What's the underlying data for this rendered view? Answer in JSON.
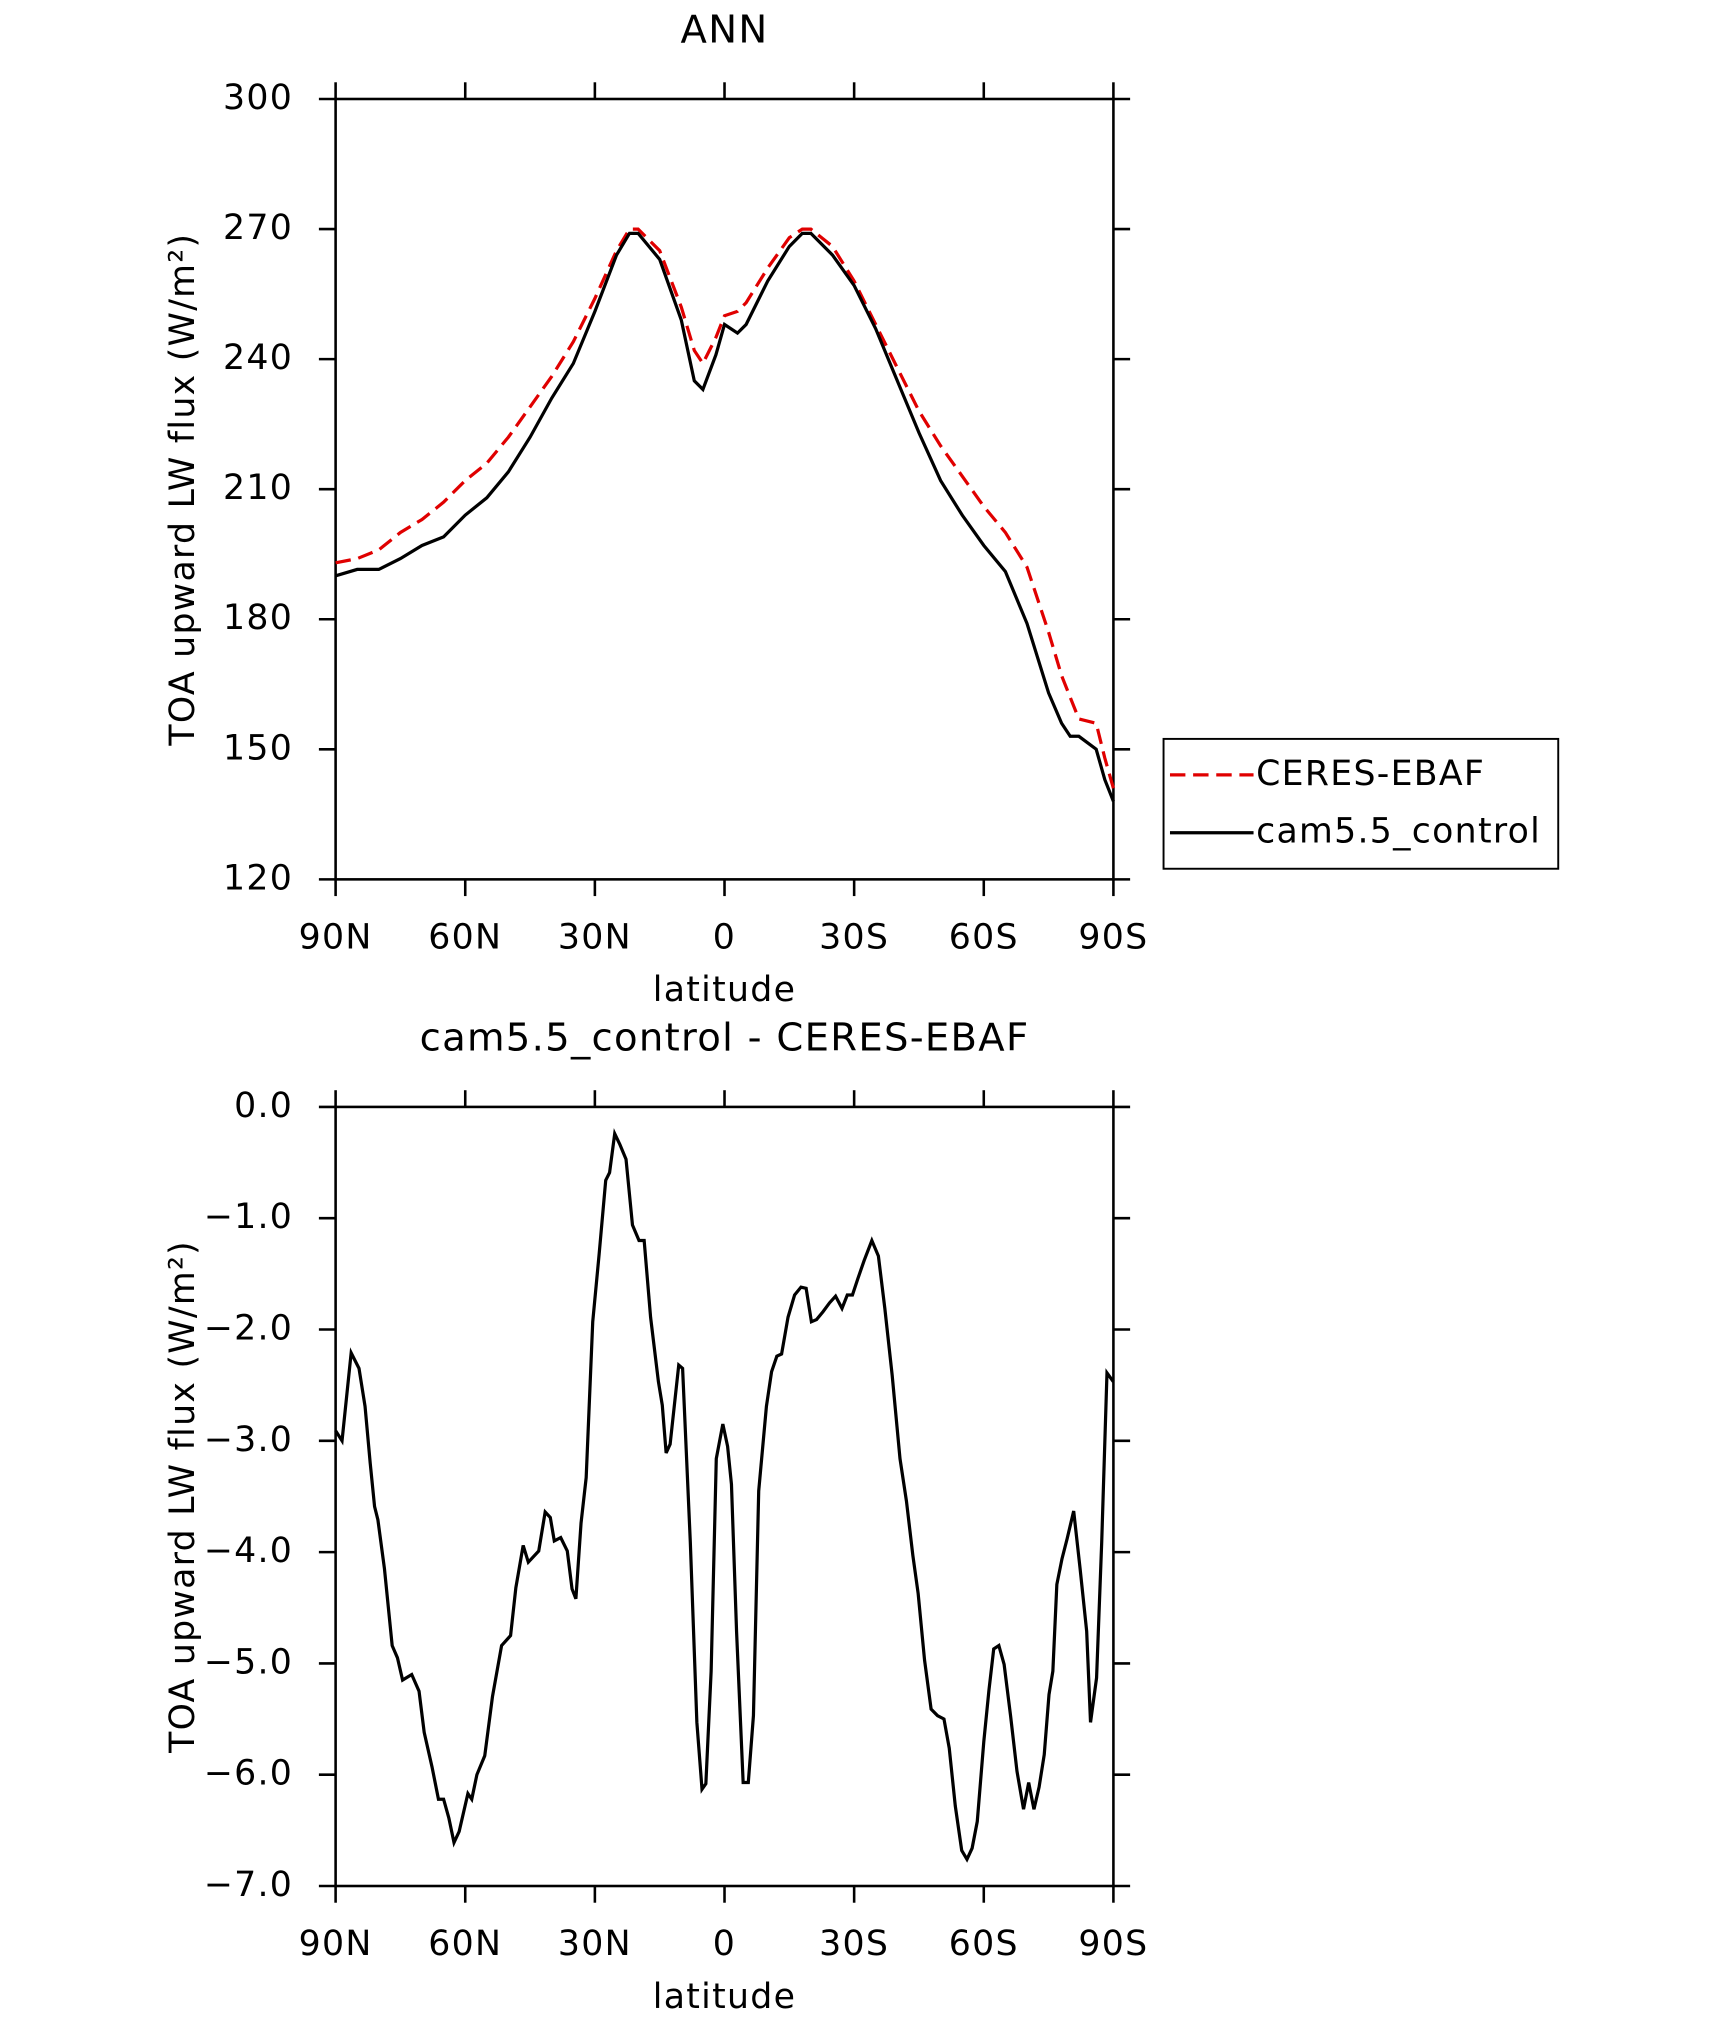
{
  "chart_data": [
    {
      "type": "line",
      "title": "ANN",
      "xlabel": "latitude",
      "ylabel": "TOA upward LW flux (W/m²)",
      "x": [
        90,
        85,
        80,
        75,
        70,
        65,
        60,
        55,
        50,
        45,
        40,
        35,
        30,
        25,
        22,
        20,
        15,
        10,
        7,
        5,
        2,
        0,
        -3,
        -5,
        -10,
        -15,
        -18,
        -20,
        -25,
        -30,
        -35,
        -40,
        -45,
        -50,
        -55,
        -60,
        -65,
        -70,
        -75,
        -78,
        -80,
        -82,
        -86,
        -88,
        -90
      ],
      "series": [
        {
          "name": "CERES-EBAF",
          "color": "#e00000",
          "dash": true,
          "values": [
            193,
            194,
            196,
            200,
            203,
            207,
            212,
            216,
            222,
            229,
            236,
            244,
            254,
            265,
            270,
            270,
            265,
            252,
            242,
            239,
            245,
            250,
            251,
            253,
            261,
            268,
            270,
            270,
            266,
            258,
            248,
            238,
            228,
            220,
            213,
            206,
            200,
            192,
            177,
            167,
            162,
            157,
            156,
            148,
            141
          ]
        },
        {
          "name": "cam5.5_control",
          "color": "#000000",
          "dash": false,
          "values": [
            190,
            191.5,
            191.5,
            194,
            197,
            199,
            204,
            208,
            214,
            222,
            231,
            239,
            251,
            264,
            269,
            269,
            263,
            249,
            235,
            233,
            241,
            248,
            246,
            248,
            258,
            266,
            269,
            269,
            264,
            257,
            247,
            235,
            223,
            212,
            204,
            197,
            191,
            179,
            163,
            156,
            153,
            153,
            150,
            143,
            138
          ]
        }
      ],
      "xlim": [
        90,
        -90
      ],
      "xticks": [
        {
          "value": 90,
          "label": "90N"
        },
        {
          "value": 60,
          "label": "60N"
        },
        {
          "value": 30,
          "label": "30N"
        },
        0,
        {
          "value": -30,
          "label": "30S"
        },
        {
          "value": -60,
          "label": "60S"
        },
        {
          "value": -90,
          "label": "90S"
        }
      ],
      "ylim": [
        120,
        300
      ],
      "yticks": [
        120,
        150,
        180,
        210,
        240,
        270,
        300
      ],
      "legend": "right"
    },
    {
      "type": "line",
      "title": "cam5.5_control - CERES-EBAF",
      "xlabel": "latitude",
      "ylabel": "TOA upward LW flux (W/m²)",
      "x": [
        90,
        88.5,
        86.4,
        84.6,
        83.2,
        82,
        81,
        80.2,
        78.7,
        76.9,
        75.7,
        74.5,
        72.4,
        70.7,
        69.5,
        67.7,
        66.2,
        65,
        63.8,
        62.6,
        61.4,
        59.4,
        58.5,
        57.3,
        55.5,
        53.7,
        51.6,
        49.5,
        48.3,
        46.6,
        45.4,
        43,
        41.5,
        40.3,
        39.4,
        37.9,
        36.4,
        35.3,
        34.4,
        33.2,
        32,
        30.5,
        29,
        27.5,
        26.6,
        25.4,
        24.2,
        22.8,
        21.3,
        19.8,
        18.6,
        17.1,
        15.3,
        14.4,
        13.5,
        12.6,
        10.6,
        9.7,
        7.9,
        6.4,
        5.2,
        4.3,
        3.1,
        1.9,
        0.4,
        -0.7,
        -1.6,
        -2.8,
        -4.3,
        -5.5,
        -6.7,
        -7.9,
        -9.7,
        -10.9,
        -12.1,
        -13.2,
        -14.7,
        -16.2,
        -17.7,
        -18.9,
        -20.1,
        -21.3,
        -22.8,
        -24.3,
        -25.7,
        -27.2,
        -28.4,
        -29.6,
        -30.8,
        -32.3,
        -34.1,
        -35.6,
        -37.1,
        -38.8,
        -40.6,
        -42.1,
        -43.6,
        -44.8,
        -46.3,
        -47.8,
        -49.3,
        -50.8,
        -52,
        -53.4,
        -54.9,
        -56.1,
        -57.3,
        -58.5,
        -60,
        -61.2,
        -62.3,
        -63.5,
        -64.7,
        -66.2,
        -67.7,
        -69.2,
        -70.4,
        -71.6,
        -72.8,
        -74,
        -75.1,
        -76,
        -76.9,
        -78.1,
        -79.3,
        -80.8,
        -82.3,
        -83.8,
        -84.7,
        -86.1,
        -87.3,
        -88.5,
        -90
      ],
      "series": [
        {
          "color": "#000000",
          "values": [
            -2.91,
            -3.0,
            -2.21,
            -2.35,
            -2.69,
            -3.2,
            -3.59,
            -3.71,
            -4.15,
            -4.84,
            -4.95,
            -5.15,
            -5.1,
            -5.25,
            -5.62,
            -5.93,
            -6.22,
            -6.22,
            -6.39,
            -6.61,
            -6.51,
            -6.17,
            -6.22,
            -6.0,
            -5.83,
            -5.3,
            -4.84,
            -4.75,
            -4.32,
            -3.94,
            -4.09,
            -3.99,
            -3.64,
            -3.69,
            -3.9,
            -3.87,
            -3.99,
            -4.33,
            -4.42,
            -3.74,
            -3.33,
            -1.93,
            -1.32,
            -0.66,
            -0.59,
            -0.24,
            -0.34,
            -0.47,
            -1.06,
            -1.2,
            -1.2,
            -1.89,
            -2.47,
            -2.68,
            -3.11,
            -3.03,
            -2.32,
            -2.35,
            -3.91,
            -5.53,
            -6.13,
            -6.08,
            -5.07,
            -3.16,
            -2.85,
            -3.05,
            -3.39,
            -4.72,
            -6.07,
            -6.07,
            -5.47,
            -3.45,
            -2.69,
            -2.38,
            -2.24,
            -2.22,
            -1.89,
            -1.69,
            -1.62,
            -1.63,
            -1.93,
            -1.91,
            -1.84,
            -1.76,
            -1.7,
            -1.81,
            -1.69,
            -1.69,
            -1.55,
            -1.38,
            -1.2,
            -1.34,
            -1.81,
            -2.41,
            -3.16,
            -3.54,
            -4.03,
            -4.37,
            -4.97,
            -5.41,
            -5.47,
            -5.5,
            -5.76,
            -6.28,
            -6.68,
            -6.76,
            -6.66,
            -6.42,
            -5.7,
            -5.24,
            -4.87,
            -4.84,
            -5.01,
            -5.47,
            -5.97,
            -6.31,
            -6.07,
            -6.31,
            -6.11,
            -5.82,
            -5.28,
            -5.07,
            -4.29,
            -4.06,
            -3.88,
            -3.63,
            -4.15,
            -4.71,
            -5.53,
            -5.13,
            -3.91,
            -2.39,
            -2.47
          ]
        }
      ],
      "xlim": [
        90,
        -90
      ],
      "xticks": [
        {
          "value": 90,
          "label": "90N"
        },
        {
          "value": 60,
          "label": "60N"
        },
        {
          "value": 30,
          "label": "30N"
        },
        0,
        {
          "value": -30,
          "label": "30S"
        },
        {
          "value": -60,
          "label": "60S"
        },
        {
          "value": -90,
          "label": "90S"
        }
      ],
      "ylim": [
        -7,
        0
      ],
      "yticks": [
        {
          "value": -7,
          "label": "−7.0"
        },
        {
          "value": -6,
          "label": "−6.0"
        },
        {
          "value": -5,
          "label": "−5.0"
        },
        {
          "value": -4,
          "label": "−4.0"
        },
        {
          "value": -3,
          "label": "−3.0"
        },
        {
          "value": -2,
          "label": "−2.0"
        },
        {
          "value": -1,
          "label": "−1.0"
        },
        {
          "value": 0,
          "label": "0.0"
        }
      ]
    }
  ]
}
